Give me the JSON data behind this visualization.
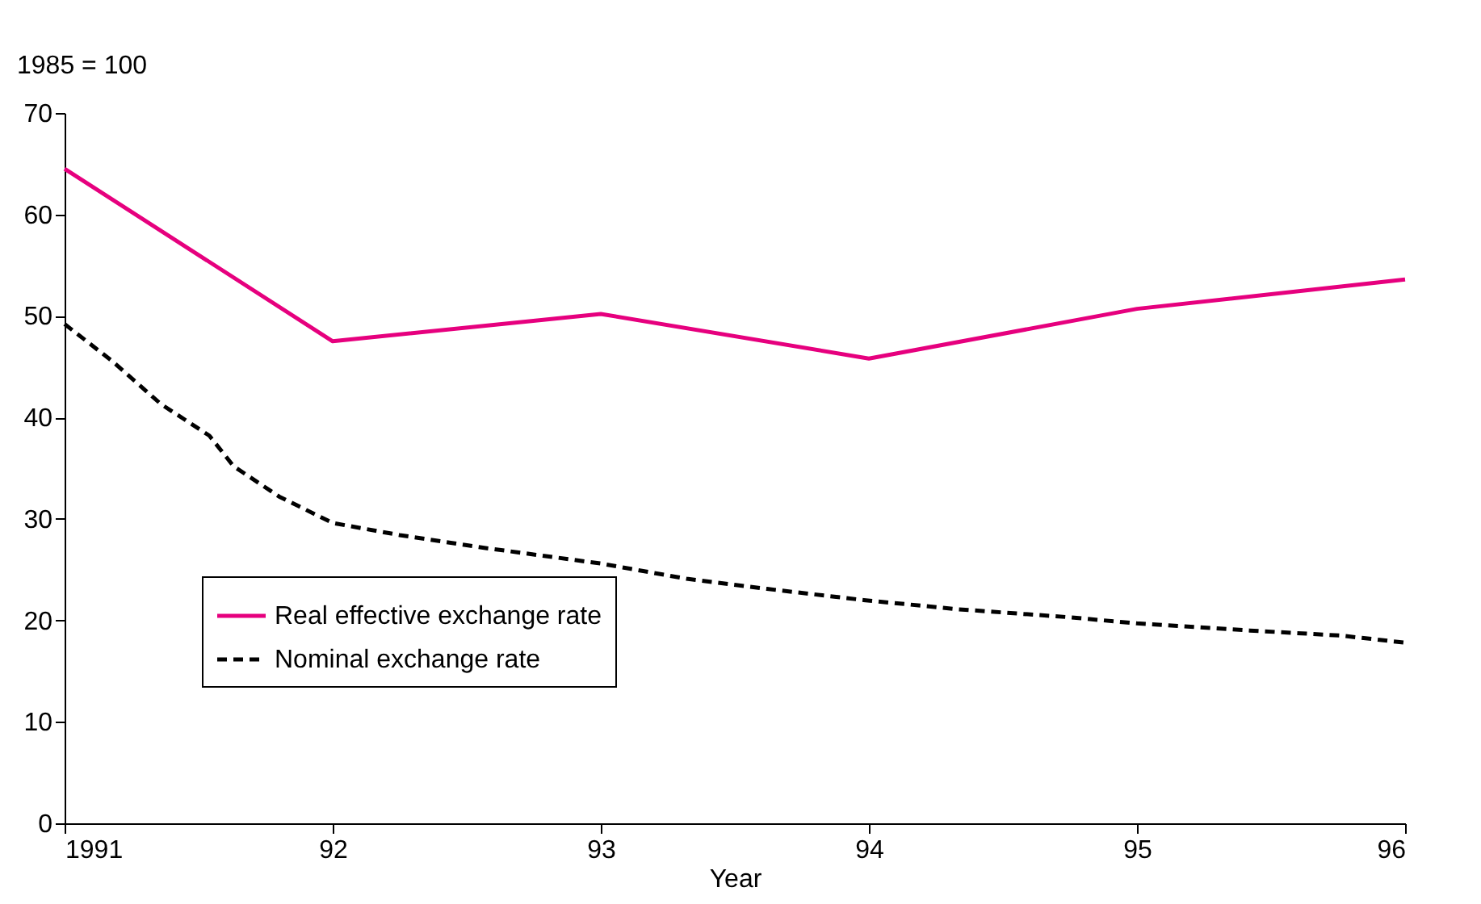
{
  "chart_data": {
    "type": "line",
    "ylabel": "1985 = 100",
    "xlabel": "Year",
    "series": [
      {
        "name": "Real effective exchange rate",
        "color": "#e6007e",
        "line_style": "solid",
        "x": [
          1991,
          1992,
          1993,
          1994,
          1995,
          1996
        ],
        "values": [
          64.5,
          47.5,
          50.2,
          45.8,
          50.7,
          53.6
        ]
      },
      {
        "name": "Nominal exchange rate",
        "color": "#000000",
        "line_style": "dashed",
        "x": [
          1991,
          1991.18,
          1991.36,
          1991.54,
          1991.63,
          1991.8,
          1992.0,
          1992.25,
          1992.55,
          1993.0,
          1993.32,
          1993.62,
          1993.98,
          1994.33,
          1994.75,
          1995.0,
          1995.42,
          1995.76,
          1996
        ],
        "values": [
          49.2,
          45.5,
          41.3,
          38.2,
          35.2,
          32.2,
          29.6,
          28.4,
          27.2,
          25.6,
          24.1,
          23.1,
          22.0,
          21.1,
          20.3,
          19.7,
          19.0,
          18.5,
          17.8
        ]
      }
    ],
    "xlim": [
      1991,
      1996
    ],
    "xticks": [
      1991,
      {
        "value": 1992,
        "label": "92"
      },
      {
        "value": 1993,
        "label": "93"
      },
      {
        "value": 1994,
        "label": "94"
      },
      {
        "value": 1995,
        "label": "95"
      },
      {
        "value": 1996,
        "label": "96"
      }
    ],
    "ylim": [
      0,
      70
    ],
    "yticks": [
      0,
      10,
      20,
      30,
      40,
      50,
      60,
      70
    ],
    "grid": false,
    "legend": "bottom left",
    "marker": "none"
  }
}
